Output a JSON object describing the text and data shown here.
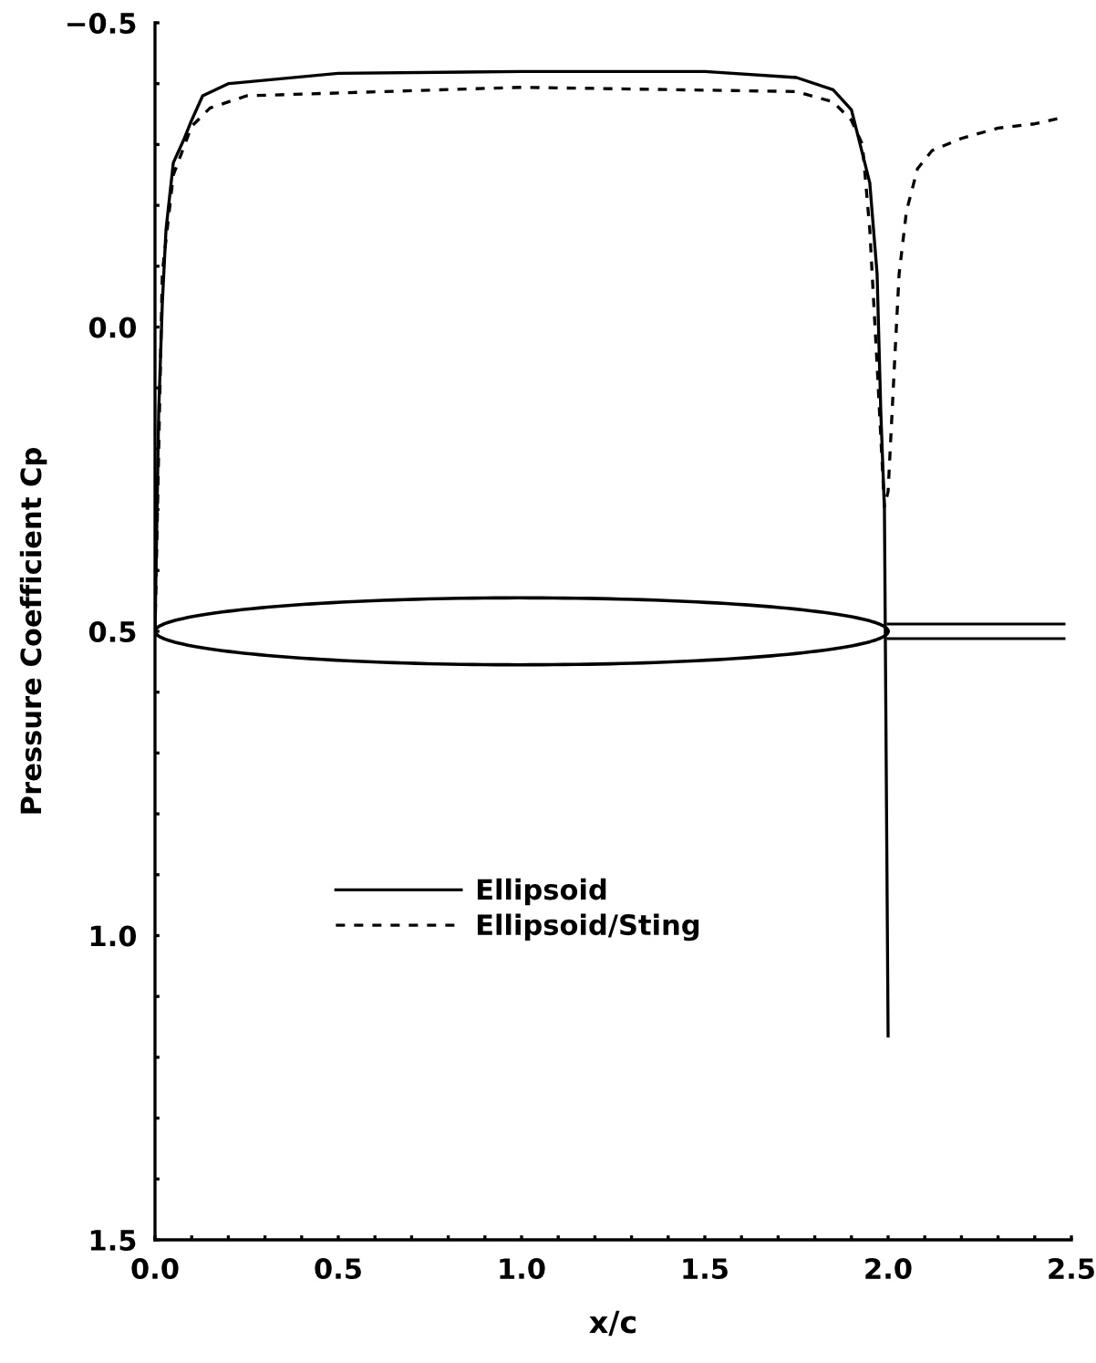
{
  "chart_data": {
    "type": "line",
    "xlabel": "x/c",
    "ylabel": "Pressure Coefficient Cp",
    "xlim": [
      0.0,
      2.5
    ],
    "ylim": [
      1.5,
      -0.5
    ],
    "xticks": [
      {
        "value": 0.0,
        "label": "0.0"
      },
      {
        "value": 0.1,
        "label": null
      },
      {
        "value": 0.2,
        "label": null
      },
      {
        "value": 0.3,
        "label": null
      },
      {
        "value": 0.4,
        "label": null
      },
      {
        "value": 0.5,
        "label": "0.5"
      },
      {
        "value": 0.6,
        "label": null
      },
      {
        "value": 0.7,
        "label": null
      },
      {
        "value": 0.8,
        "label": null
      },
      {
        "value": 0.9,
        "label": null
      },
      {
        "value": 1.0,
        "label": "1.0"
      },
      {
        "value": 1.1,
        "label": null
      },
      {
        "value": 1.2,
        "label": null
      },
      {
        "value": 1.3,
        "label": null
      },
      {
        "value": 1.4,
        "label": null
      },
      {
        "value": 1.5,
        "label": "1.5"
      },
      {
        "value": 1.6,
        "label": null
      },
      {
        "value": 1.7,
        "label": null
      },
      {
        "value": 1.8,
        "label": null
      },
      {
        "value": 1.9,
        "label": null
      },
      {
        "value": 2.0,
        "label": "2.0"
      },
      {
        "value": 2.1,
        "label": null
      },
      {
        "value": 2.2,
        "label": null
      },
      {
        "value": 2.3,
        "label": null
      },
      {
        "value": 2.4,
        "label": null
      },
      {
        "value": 2.5,
        "label": "2.5"
      }
    ],
    "yticks": [
      {
        "value": -0.5,
        "label": "−0.5"
      },
      {
        "value": -0.4,
        "label": null
      },
      {
        "value": -0.3,
        "label": null
      },
      {
        "value": -0.2,
        "label": null
      },
      {
        "value": -0.1,
        "label": null
      },
      {
        "value": 0.0,
        "label": "0.0"
      },
      {
        "value": 0.1,
        "label": null
      },
      {
        "value": 0.2,
        "label": null
      },
      {
        "value": 0.3,
        "label": null
      },
      {
        "value": 0.4,
        "label": null
      },
      {
        "value": 0.5,
        "label": "0.5"
      },
      {
        "value": 0.6,
        "label": null
      },
      {
        "value": 0.7,
        "label": null
      },
      {
        "value": 0.8,
        "label": null
      },
      {
        "value": 0.9,
        "label": null
      },
      {
        "value": 1.0,
        "label": "1.0"
      },
      {
        "value": 1.1,
        "label": null
      },
      {
        "value": 1.2,
        "label": null
      },
      {
        "value": 1.3,
        "label": null
      },
      {
        "value": 1.4,
        "label": null
      },
      {
        "value": 1.5,
        "label": "1.5"
      }
    ],
    "grid": false,
    "legend": "bottom left",
    "marker": "none",
    "series": [
      {
        "name": "Ellipsoid",
        "color": "#000000",
        "line_style": "solid",
        "x": [
          0.0,
          0.01,
          0.02,
          0.03,
          0.05,
          0.08,
          0.1,
          0.13,
          0.2,
          0.5,
          1.0,
          1.5,
          1.75,
          1.85,
          1.9,
          1.95,
          1.97,
          1.98,
          1.99,
          2.0
        ],
        "values": [
          0.5,
          0.14,
          -0.04,
          -0.16,
          -0.27,
          -0.31,
          -0.34,
          -0.38,
          -0.4,
          -0.417,
          -0.42,
          -0.42,
          -0.41,
          -0.39,
          -0.357,
          -0.237,
          -0.087,
          0.138,
          0.3,
          1.165
        ]
      },
      {
        "name": "Ellipsoid/Sting",
        "color": "#000000",
        "line_style": "dashed",
        "x": [
          0.0,
          0.02,
          0.05,
          0.1,
          0.15,
          0.25,
          1.0,
          1.75,
          1.85,
          1.9,
          1.93,
          1.95,
          1.97,
          1.98,
          1.99,
          2.0,
          2.01,
          2.02,
          2.03,
          2.05,
          2.08,
          2.12,
          2.2,
          2.3,
          2.4,
          2.48
        ],
        "values": [
          0.5,
          -0.09,
          -0.25,
          -0.33,
          -0.36,
          -0.38,
          -0.394,
          -0.387,
          -0.37,
          -0.34,
          -0.3,
          -0.16,
          0.063,
          0.18,
          0.295,
          0.27,
          0.15,
          0.03,
          -0.087,
          -0.19,
          -0.26,
          -0.29,
          -0.31,
          -0.327,
          -0.334,
          -0.345
        ]
      }
    ]
  }
}
